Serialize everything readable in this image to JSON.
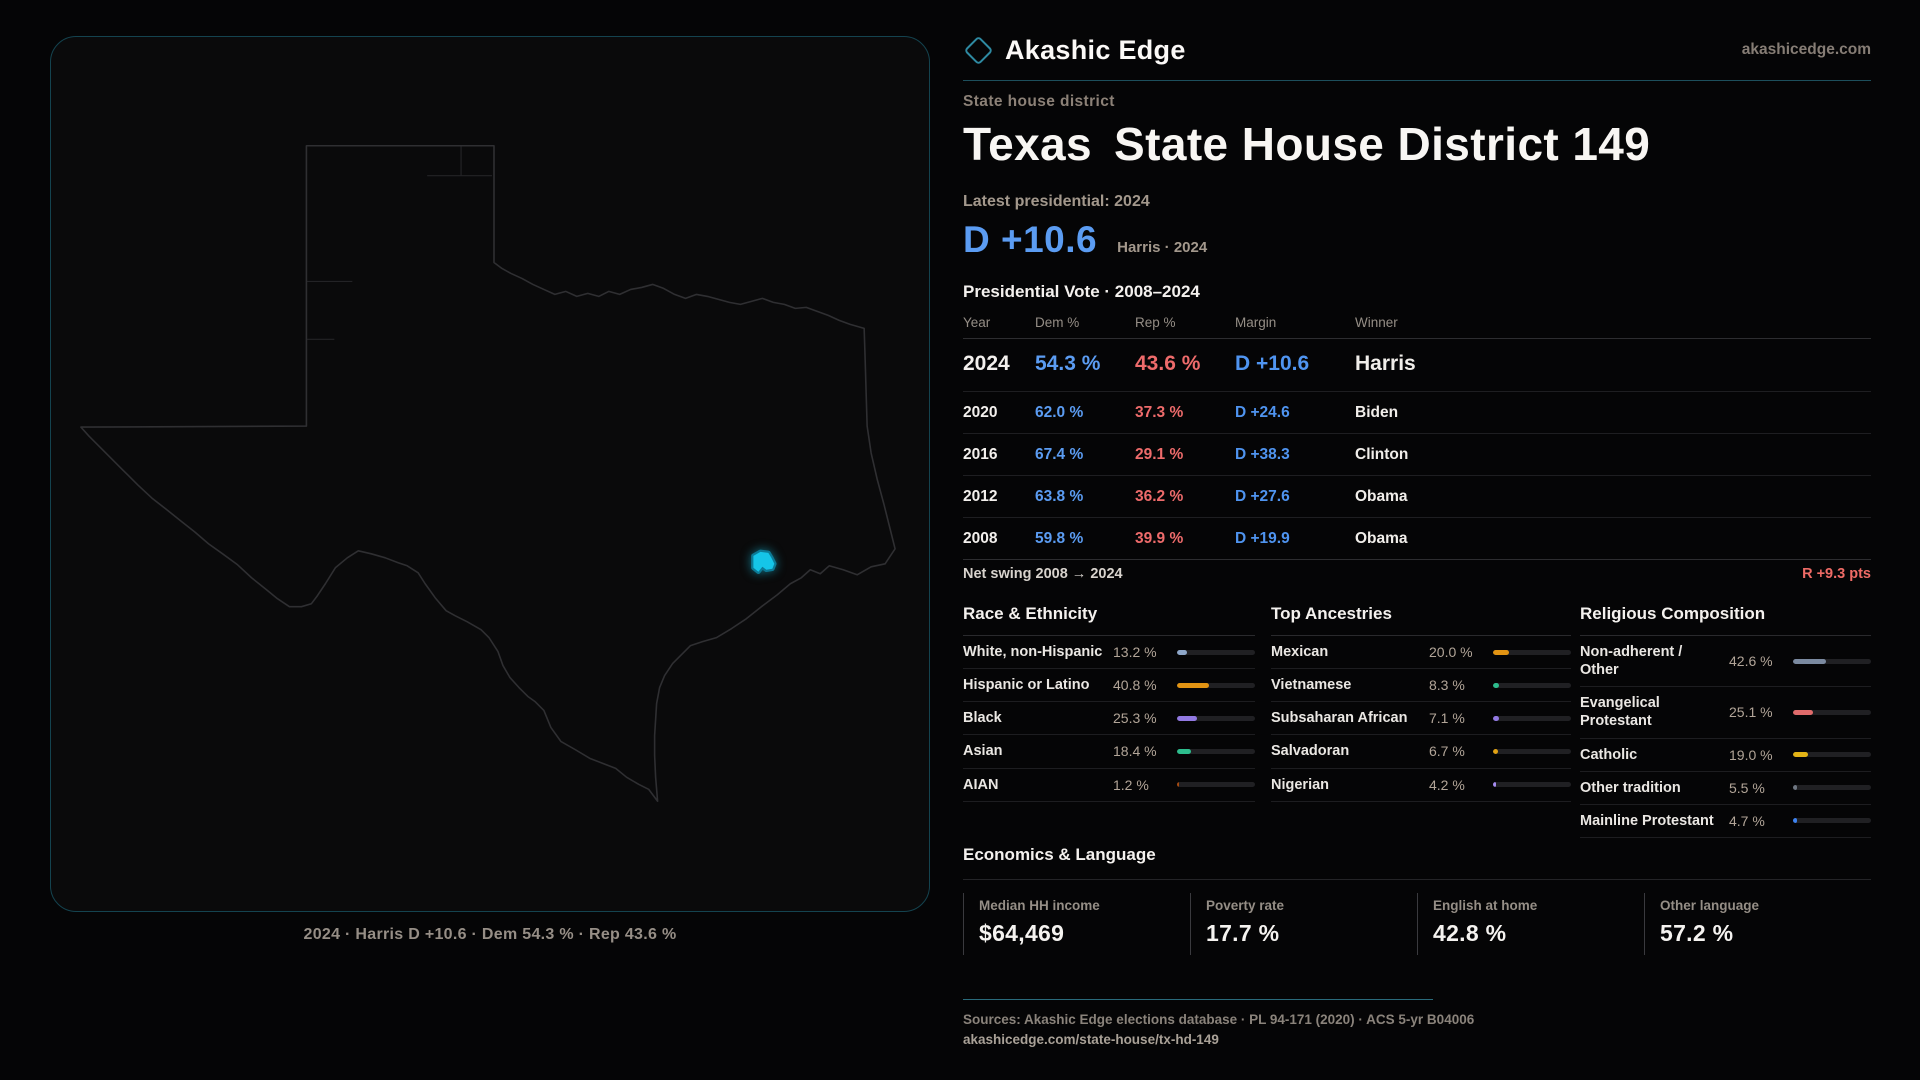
{
  "brand": {
    "name": "Akashic Edge",
    "site": "akashicedge.com"
  },
  "page": {
    "kicker": "State house district",
    "title_state": "Texas",
    "title_rest": "State House District 149",
    "latest_label": "Latest presidential: 2024",
    "headline_margin": "D +10.6",
    "headline_sub": "Harris · 2024",
    "table_title": "Presidential Vote · 2008–2024"
  },
  "table": {
    "headers": {
      "year": "Year",
      "dem": "Dem %",
      "rep": "Rep %",
      "margin": "Margin",
      "winner": "Winner"
    },
    "rows": [
      {
        "year": "2024",
        "dem": "54.3 %",
        "rep": "43.6 %",
        "margin": "D +10.6",
        "winner": "Harris"
      },
      {
        "year": "2020",
        "dem": "62.0 %",
        "rep": "37.3 %",
        "margin": "D +24.6",
        "winner": "Biden"
      },
      {
        "year": "2016",
        "dem": "67.4 %",
        "rep": "29.1 %",
        "margin": "D +38.3",
        "winner": "Clinton"
      },
      {
        "year": "2012",
        "dem": "63.8 %",
        "rep": "36.2 %",
        "margin": "D +27.6",
        "winner": "Obama"
      },
      {
        "year": "2008",
        "dem": "59.8 %",
        "rep": "39.9 %",
        "margin": "D +19.9",
        "winner": "Obama"
      }
    ]
  },
  "net_swing": {
    "label": "Net swing 2008 → 2024",
    "value": "R +9.3 pts"
  },
  "race": {
    "title": "Race & Ethnicity",
    "items": [
      {
        "label": "White, non-Hispanic",
        "value": "13.2 %",
        "pct": 13.2,
        "color": "#8ea7c9"
      },
      {
        "label": "Hispanic or Latino",
        "value": "40.8 %",
        "pct": 40.8,
        "color": "#e29413"
      },
      {
        "label": "Black",
        "value": "25.3 %",
        "pct": 25.3,
        "color": "#9279e2"
      },
      {
        "label": "Asian",
        "value": "18.4 %",
        "pct": 18.4,
        "color": "#2dbd8d"
      },
      {
        "label": "AIAN",
        "value": "1.2 %",
        "pct": 1.2,
        "color": "#a64a10"
      }
    ]
  },
  "ancestries": {
    "title": "Top Ancestries",
    "items": [
      {
        "label": "Mexican",
        "value": "20.0 %",
        "pct": 20.0,
        "color": "#e29413"
      },
      {
        "label": "Vietnamese",
        "value": "8.3 %",
        "pct": 8.3,
        "color": "#2dbd8d"
      },
      {
        "label": "Subsaharan African",
        "value": "7.1 %",
        "pct": 7.1,
        "color": "#9279e2"
      },
      {
        "label": "Salvadoran",
        "value": "6.7 %",
        "pct": 6.7,
        "color": "#e2a213"
      },
      {
        "label": "Nigerian",
        "value": "4.2 %",
        "pct": 4.2,
        "color": "#a58cf0"
      }
    ]
  },
  "religion": {
    "title": "Religious Composition",
    "items": [
      {
        "label": "Non-adherent / Other",
        "value": "42.6 %",
        "pct": 42.6,
        "color": "#7b8aa0"
      },
      {
        "label": "Evangelical Protestant",
        "value": "25.1 %",
        "pct": 25.1,
        "color": "#e06b6b"
      },
      {
        "label": "Catholic",
        "value": "19.0 %",
        "pct": 19.0,
        "color": "#e3b416"
      },
      {
        "label": "Other tradition",
        "value": "5.5 %",
        "pct": 5.5,
        "color": "#6e7681"
      },
      {
        "label": "Mainline Protestant",
        "value": "4.7 %",
        "pct": 4.7,
        "color": "#3d82f0"
      }
    ]
  },
  "economics": {
    "title": "Economics & Language",
    "stats": [
      {
        "label": "Median HH income",
        "value": "$64,469"
      },
      {
        "label": "Poverty rate",
        "value": "17.7 %"
      },
      {
        "label": "English at home",
        "value": "42.8 %"
      },
      {
        "label": "Other language",
        "value": "57.2 %"
      }
    ]
  },
  "footer": {
    "sources": "Sources: Akashic Edge elections database · PL 94-171 (2020) · ACS 5-yr B04006",
    "url": "akashicedge.com/state-house/tx-hd-149"
  },
  "map": {
    "caption": "2024 · Harris D +10.6 · Dem 54.3 % · Rep 43.6 %"
  },
  "colors": {
    "dem_blue": "#5b9cf2",
    "rep_red": "#ee6b6b",
    "accent_teal": "#1d4f5c",
    "district_fill": "#15c5e8",
    "district_stroke": "#0c7a96",
    "background": "#050506"
  },
  "chart_data": [
    {
      "type": "table",
      "title": "Presidential Vote · 2008–2024",
      "columns": [
        "Year",
        "Dem %",
        "Rep %",
        "Margin",
        "Winner"
      ],
      "rows": [
        [
          2024,
          54.3,
          43.6,
          "D +10.6",
          "Harris"
        ],
        [
          2020,
          62.0,
          37.3,
          "D +24.6",
          "Biden"
        ],
        [
          2016,
          67.4,
          29.1,
          "D +38.3",
          "Clinton"
        ],
        [
          2012,
          63.8,
          36.2,
          "D +27.6",
          "Obama"
        ],
        [
          2008,
          59.8,
          39.9,
          "D +19.9",
          "Obama"
        ]
      ],
      "net_swing_2008_to_2024": "R +9.3 pts"
    },
    {
      "type": "bar",
      "title": "Race & Ethnicity",
      "categories": [
        "White, non-Hispanic",
        "Hispanic or Latino",
        "Black",
        "Asian",
        "AIAN"
      ],
      "values": [
        13.2,
        40.8,
        25.3,
        18.4,
        1.2
      ],
      "xlim": [
        0,
        100
      ]
    },
    {
      "type": "bar",
      "title": "Top Ancestries",
      "categories": [
        "Mexican",
        "Vietnamese",
        "Subsaharan African",
        "Salvadoran",
        "Nigerian"
      ],
      "values": [
        20.0,
        8.3,
        7.1,
        6.7,
        4.2
      ],
      "xlim": [
        0,
        100
      ]
    },
    {
      "type": "bar",
      "title": "Religious Composition",
      "categories": [
        "Non-adherent / Other",
        "Evangelical Protestant",
        "Catholic",
        "Other tradition",
        "Mainline Protestant"
      ],
      "values": [
        42.6,
        25.1,
        19.0,
        5.5,
        4.7
      ],
      "xlim": [
        0,
        100
      ]
    },
    {
      "type": "table",
      "title": "Economics & Language",
      "columns": [
        "Median HH income",
        "Poverty rate",
        "English at home",
        "Other language"
      ],
      "rows": [
        [
          "$64,469",
          "17.7 %",
          "42.8 %",
          "57.2 %"
        ]
      ]
    }
  ]
}
